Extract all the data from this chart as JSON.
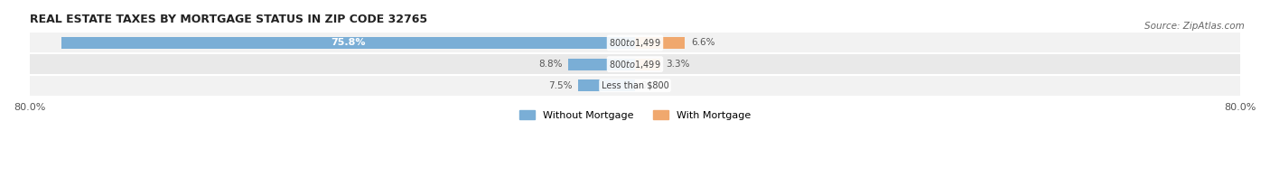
{
  "title": "REAL ESTATE TAXES BY MORTGAGE STATUS IN ZIP CODE 32765",
  "source": "Source: ZipAtlas.com",
  "rows": [
    {
      "label": "Less than $800",
      "without_mortgage": 7.5,
      "with_mortgage": 0.0
    },
    {
      "label": "$800 to $1,499",
      "without_mortgage": 8.8,
      "with_mortgage": 3.3
    },
    {
      "label": "$800 to $1,499",
      "without_mortgage": 75.8,
      "with_mortgage": 6.6
    }
  ],
  "x_max": 80.0,
  "x_min": -80.0,
  "color_without": "#7aaed6",
  "color_with": "#f0a86e",
  "row_colors": [
    "#f2f2f2",
    "#e9e9e9"
  ],
  "legend_without": "Without Mortgage",
  "legend_with": "With Mortgage"
}
